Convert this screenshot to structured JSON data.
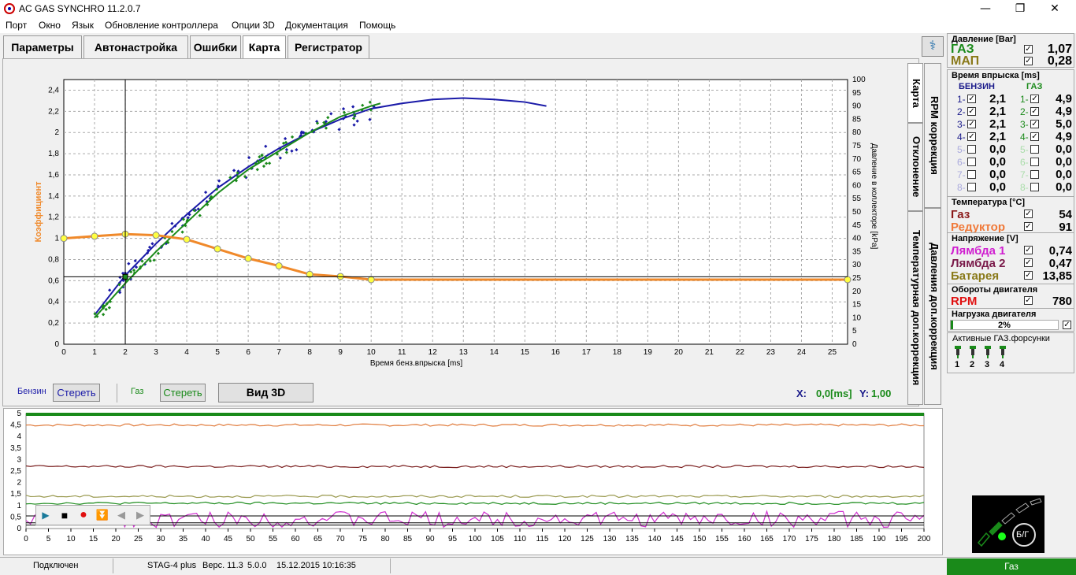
{
  "window": {
    "title": "AC GAS SYNCHRO  11.2.0.7",
    "minimize": "—",
    "maximize": "❐",
    "close": "✕"
  },
  "menu": [
    "Порт",
    "Окно",
    "Язык",
    "Обновление контроллера",
    "Опции 3D",
    "Документация",
    "Помощь"
  ],
  "tabs": [
    "Параметры",
    "Автонастройка",
    "Ошибки",
    "Карта",
    "Регистратор"
  ],
  "side_tabs": [
    "Карта",
    "Отклонение",
    "Температурная доп.коррекция",
    "RPM коррекция",
    "Давления доп.коррекция"
  ],
  "chart_labels": {
    "ylabel_left": "Коэффициент",
    "ylabel_right": "Давление в коллекторе [kPa]",
    "xlabel": "Время бенз.впрыска [ms]"
  },
  "controls": {
    "benzin_label": "Бензин",
    "benzin_clear": "Стереть",
    "gas_label": "Газ",
    "gas_clear": "Стереть",
    "view3d": "Вид 3D",
    "coord_x_label": "X:",
    "coord_x_val": "0,0[ms]",
    "coord_y_label": "Y:",
    "coord_y_val": "1,00"
  },
  "colors": {
    "benzin": "#1a1aa8",
    "gas": "#1a8a1a",
    "coef": "#f0892a",
    "coef_point": "#ffff40"
  },
  "chart_data": [
    {
      "type": "scatter",
      "x_axis": {
        "label": "Время бенз.впрыска [ms]",
        "range": [
          0,
          25.5
        ],
        "ticks": [
          0,
          1,
          2,
          3,
          4,
          5,
          6,
          7,
          8,
          9,
          10,
          11,
          12,
          13,
          14,
          15,
          16,
          17,
          18,
          19,
          20,
          21,
          22,
          23,
          24,
          25
        ]
      },
      "y_left": {
        "label": "Коэффициент",
        "range": [
          0,
          2.5
        ],
        "ticks": [
          "0",
          "0,2",
          "0,4",
          "0,6",
          "0,8",
          "1",
          "1,2",
          "1,4",
          "1,6",
          "1,8",
          "2",
          "2,2",
          "2,4"
        ]
      },
      "y_right": {
        "label": "Давление в коллекторе [kPa]",
        "range": [
          0,
          100
        ],
        "ticks": [
          0,
          5,
          10,
          15,
          20,
          25,
          30,
          35,
          40,
          45,
          50,
          55,
          60,
          65,
          70,
          75,
          80,
          85,
          90,
          95,
          100
        ]
      },
      "grid": true,
      "coefficient_curve": {
        "x": [
          0,
          1,
          2,
          3,
          4,
          5,
          6,
          7,
          8,
          9,
          10,
          25.5
        ],
        "y": [
          1.0,
          1.02,
          1.04,
          1.03,
          0.99,
          0.9,
          0.81,
          0.74,
          0.66,
          0.64,
          0.61,
          0.61
        ]
      },
      "cursor": {
        "x": 2.0,
        "y_kpa": 25.5
      },
      "series": [
        {
          "name": "Бензин",
          "trend_x": [
            1,
            2,
            3,
            4,
            5,
            6,
            7,
            8,
            9,
            10,
            11,
            12,
            13,
            14,
            15,
            15.7
          ],
          "trend_y_kpa": [
            11,
            26,
            38,
            49,
            59,
            67,
            74,
            80,
            85,
            89,
            91,
            92.5,
            93,
            92.5,
            91.5,
            90
          ]
        },
        {
          "name": "Газ",
          "trend_x": [
            1,
            2,
            3,
            4,
            5,
            6,
            7,
            8,
            9,
            10,
            10.3
          ],
          "trend_y_kpa": [
            10,
            23,
            35,
            46,
            57,
            66,
            73,
            80,
            86,
            90,
            91
          ]
        }
      ]
    },
    {
      "type": "line",
      "x_axis": {
        "range": [
          0,
          200
        ],
        "ticks": [
          0,
          5,
          10,
          15,
          20,
          25,
          30,
          35,
          40,
          45,
          50,
          55,
          60,
          65,
          70,
          75,
          80,
          85,
          90,
          95,
          100,
          105,
          110,
          115,
          120,
          125,
          130,
          135,
          140,
          145,
          150,
          155,
          160,
          165,
          170,
          175,
          180,
          185,
          190,
          195,
          200
        ]
      },
      "y_axis": {
        "range": [
          0,
          5
        ],
        "ticks": [
          "0",
          "0,5",
          "1",
          "1,5",
          "2",
          "2,5",
          "3",
          "3,5",
          "4",
          "4,5",
          "5"
        ]
      },
      "series": [
        {
          "color": "#e07a3a",
          "level": 4.5
        },
        {
          "color": "#7a1e1e",
          "level": 2.7
        },
        {
          "color": "#9a9a50",
          "level": 1.4
        },
        {
          "color": "#1a8a1a",
          "level": 1.1
        },
        {
          "color": "#d030d0",
          "level": 0.4
        }
      ]
    }
  ],
  "trend_toolbar": [
    "▶",
    "■",
    "●",
    "⏬",
    "◀",
    "▶"
  ],
  "pressure": {
    "title": "Давление [Bar]",
    "gas_label": "ГАЗ",
    "gas_val": "1,07",
    "map_label": "МАП",
    "map_val": "0,28"
  },
  "injection": {
    "title": "Время впрыска [ms]",
    "benzin_hdr": "БЕНЗИН",
    "gas_hdr": "ГАЗ",
    "benzin": [
      {
        "n": "1-",
        "v": "2,1",
        "on": true
      },
      {
        "n": "2-",
        "v": "2,1",
        "on": true
      },
      {
        "n": "3-",
        "v": "2,1",
        "on": true
      },
      {
        "n": "4-",
        "v": "2,1",
        "on": true
      },
      {
        "n": "5-",
        "v": "0,0",
        "on": false
      },
      {
        "n": "6-",
        "v": "0,0",
        "on": false
      },
      {
        "n": "7-",
        "v": "0,0",
        "on": false
      },
      {
        "n": "8-",
        "v": "0,0",
        "on": false
      }
    ],
    "gas": [
      {
        "n": "1-",
        "v": "4,9",
        "on": true
      },
      {
        "n": "2-",
        "v": "4,9",
        "on": true
      },
      {
        "n": "3-",
        "v": "5,0",
        "on": true
      },
      {
        "n": "4-",
        "v": "4,9",
        "on": true
      },
      {
        "n": "5-",
        "v": "0,0",
        "on": false
      },
      {
        "n": "6-",
        "v": "0,0",
        "on": false
      },
      {
        "n": "7-",
        "v": "0,0",
        "on": false
      },
      {
        "n": "8-",
        "v": "0,0",
        "on": false
      }
    ]
  },
  "temperature": {
    "title": "Температура  [°C]",
    "gas_label": "Газ",
    "gas_val": "54",
    "red_label": "Редуктор",
    "red_val": "91"
  },
  "voltage": {
    "title": "Напряжение [V]",
    "l1_label": "Лямбда 1",
    "l1_val": "0,74",
    "l2_label": "Лямбда 2",
    "l2_val": "0,47",
    "bat_label": "Батарея",
    "bat_val": "13,85"
  },
  "rpm": {
    "title": "Обороты двигателя",
    "label": "RPM",
    "val": "780"
  },
  "load": {
    "title": "Нагрузка двигателя",
    "val": "2%",
    "fraction": 0.02
  },
  "injectors": {
    "title": "Активные ГАЗ.форсунки",
    "nums": [
      "1",
      "2",
      "3",
      "4"
    ]
  },
  "switch": {
    "label": "Б/Г"
  },
  "status": {
    "conn": "Подключен",
    "device": "STAG-4 plus",
    "version": "Верс. 11.3",
    "ver2": "5.0.0",
    "date": "15.12.2015 10:16:35",
    "mode": "Газ"
  }
}
